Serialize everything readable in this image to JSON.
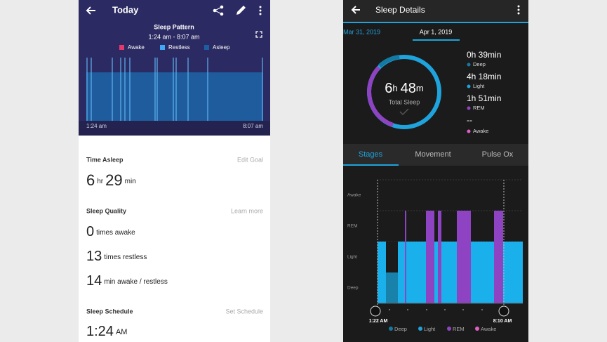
{
  "fitbit": {
    "header": {
      "title": "Today"
    },
    "pattern": {
      "title": "Sleep Pattern",
      "range": "1:24 am - 8:07 am",
      "legend": [
        "Awake",
        "Restless",
        "Asleep"
      ],
      "start": "1:24 am",
      "end": "8:07 am"
    },
    "time_asleep": {
      "title": "Time Asleep",
      "action": "Edit Goal",
      "hours": "6",
      "hours_unit": "hr",
      "minutes": "29",
      "minutes_unit": "min"
    },
    "quality": {
      "title": "Sleep Quality",
      "action": "Learn more",
      "rows": [
        [
          "0",
          "times awake"
        ],
        [
          "13",
          "times restless"
        ],
        [
          "14",
          "min awake / restless"
        ]
      ]
    },
    "schedule": {
      "title": "Sleep Schedule",
      "action": "Set Schedule",
      "time": "1:24",
      "ampm": "AM"
    }
  },
  "garmin": {
    "header": {
      "title": "Sleep Details"
    },
    "dates": [
      "Mar 31, 2019",
      "Apr 1, 2019"
    ],
    "total": {
      "hours": "6",
      "h": "h",
      "minutes": "48",
      "m": "m",
      "label": "Total Sleep"
    },
    "stats": [
      {
        "value": "0h 39min",
        "label": "Deep"
      },
      {
        "value": "4h 18min",
        "label": "Light"
      },
      {
        "value": "1h 51min",
        "label": "REM"
      },
      {
        "value": "--",
        "label": "Awake"
      }
    ],
    "tabs": [
      "Stages",
      "Movement",
      "Pulse Ox"
    ],
    "levels": [
      "Awake",
      "REM",
      "Light",
      "Deep"
    ],
    "start": "1:22 AM",
    "end": "8:10 AM",
    "legend": [
      "Deep",
      "Light",
      "REM",
      "Awake"
    ]
  }
}
